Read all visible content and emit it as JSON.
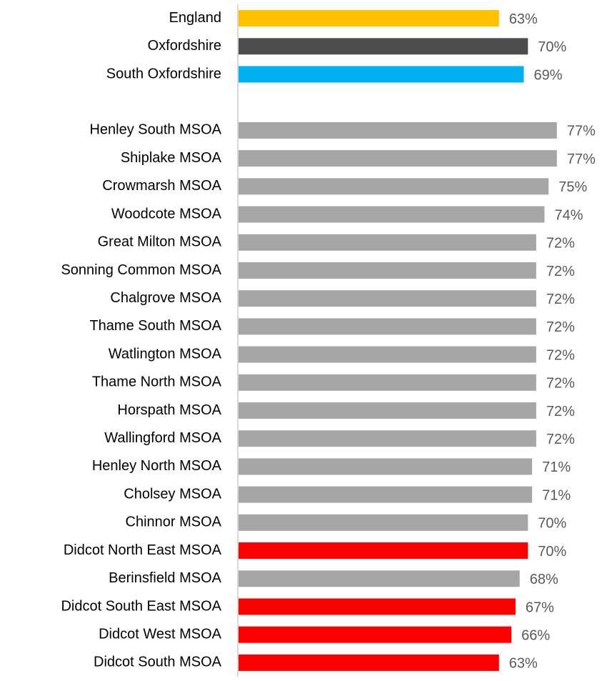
{
  "chart_data": {
    "type": "hbar",
    "categories": [
      "England",
      "Oxfordshire",
      "South Oxfordshire",
      null,
      "Henley South MSOA",
      "Shiplake MSOA",
      "Crowmarsh MSOA",
      "Woodcote MSOA",
      "Great Milton MSOA",
      "Sonning Common MSOA",
      "Chalgrove MSOA",
      "Thame South MSOA",
      "Watlington MSOA",
      "Thame North MSOA",
      "Horspath MSOA",
      "Wallingford MSOA",
      "Henley North MSOA",
      "Cholsey MSOA",
      "Chinnor MSOA",
      "Didcot North East MSOA",
      "Berinsfield MSOA",
      "Didcot South East MSOA",
      "Didcot West MSOA",
      "Didcot South MSOA"
    ],
    "values": [
      63,
      70,
      69,
      null,
      77,
      77,
      75,
      74,
      72,
      72,
      72,
      72,
      72,
      72,
      72,
      72,
      71,
      71,
      70,
      70,
      68,
      67,
      66,
      63
    ],
    "value_labels": [
      "63%",
      "70%",
      "69%",
      null,
      "77%",
      "77%",
      "75%",
      "74%",
      "72%",
      "72%",
      "72%",
      "72%",
      "72%",
      "72%",
      "72%",
      "72%",
      "71%",
      "71%",
      "70%",
      "70%",
      "68%",
      "67%",
      "66%",
      "63%"
    ],
    "colors": [
      "#ffc000",
      "#4d4d4d",
      "#00b0f0",
      null,
      "#a6a6a6",
      "#a6a6a6",
      "#a6a6a6",
      "#a6a6a6",
      "#a6a6a6",
      "#a6a6a6",
      "#a6a6a6",
      "#a6a6a6",
      "#a6a6a6",
      "#a6a6a6",
      "#a6a6a6",
      "#a6a6a6",
      "#a6a6a6",
      "#a6a6a6",
      "#a6a6a6",
      "#ff0000",
      "#a6a6a6",
      "#ff0000",
      "#ff0000",
      "#ff0000"
    ]
  }
}
